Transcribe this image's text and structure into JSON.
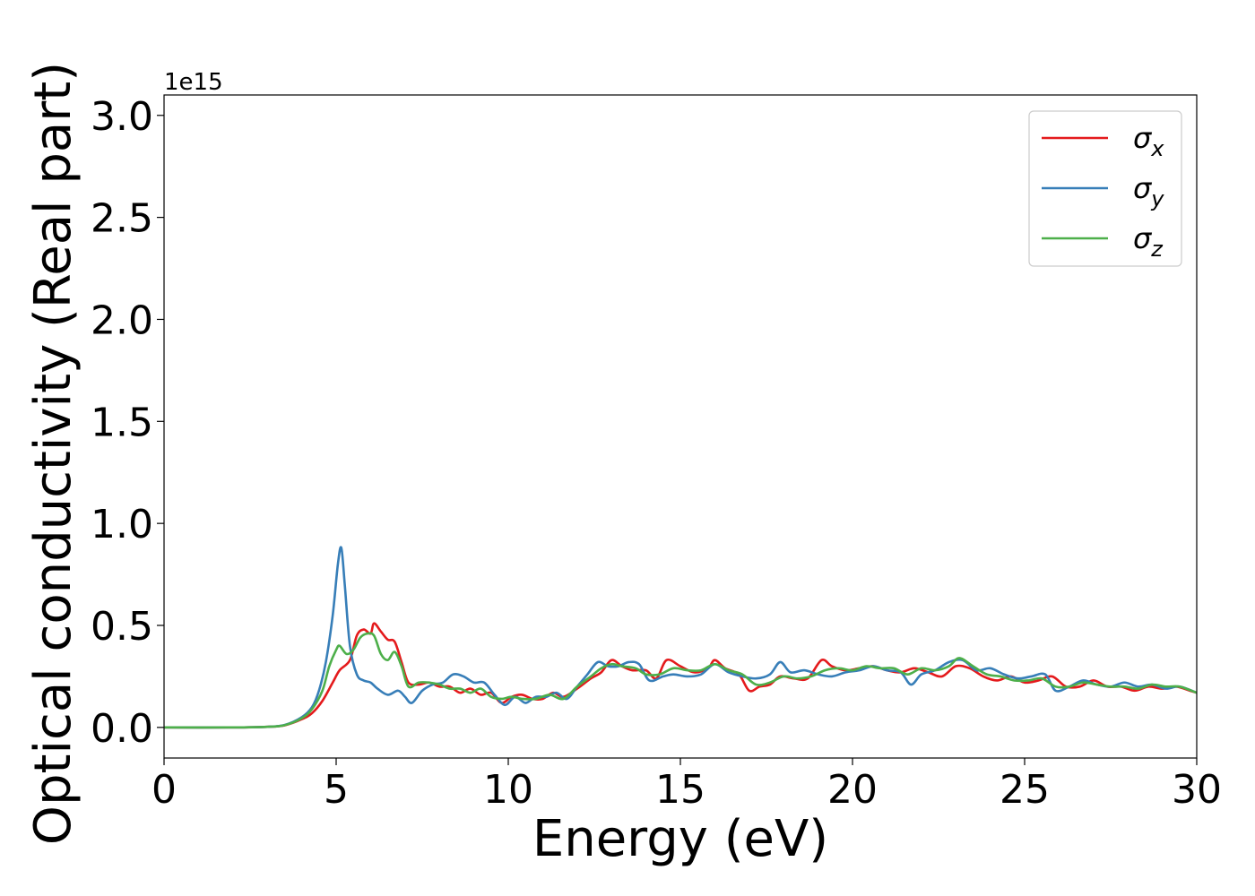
{
  "chart_data": {
    "type": "line",
    "title": "",
    "xlabel": "Energy (eV)",
    "ylabel": "Optical conductivity (Real part)",
    "y_offset_label": "1e15",
    "xlim": [
      0,
      30
    ],
    "ylim": [
      -0.15,
      3.1
    ],
    "xticks": [
      0,
      5,
      10,
      15,
      20,
      25,
      30
    ],
    "xtick_labels": [
      "0",
      "5",
      "10",
      "15",
      "20",
      "25",
      "30"
    ],
    "yticks": [
      0.0,
      0.5,
      1.0,
      1.5,
      2.0,
      2.5,
      3.0
    ],
    "ytick_labels": [
      "0.0",
      "0.5",
      "1.0",
      "1.5",
      "2.0",
      "2.5",
      "3.0"
    ],
    "grid": false,
    "legend_position": "top-right",
    "series": [
      {
        "name": "σx",
        "base": "σ",
        "sub": "x",
        "color": "#e41a1c",
        "points": [
          [
            0,
            0
          ],
          [
            2,
            0
          ],
          [
            3,
            0.003
          ],
          [
            3.5,
            0.01
          ],
          [
            4,
            0.04
          ],
          [
            4.3,
            0.07
          ],
          [
            4.6,
            0.13
          ],
          [
            4.9,
            0.22
          ],
          [
            5.1,
            0.28
          ],
          [
            5.4,
            0.33
          ],
          [
            5.6,
            0.45
          ],
          [
            5.8,
            0.48
          ],
          [
            6.0,
            0.46
          ],
          [
            6.1,
            0.51
          ],
          [
            6.3,
            0.47
          ],
          [
            6.5,
            0.43
          ],
          [
            6.7,
            0.42
          ],
          [
            6.9,
            0.32
          ],
          [
            7.1,
            0.22
          ],
          [
            7.4,
            0.21
          ],
          [
            7.7,
            0.22
          ],
          [
            8.0,
            0.2
          ],
          [
            8.3,
            0.2
          ],
          [
            8.6,
            0.17
          ],
          [
            8.9,
            0.19
          ],
          [
            9.2,
            0.16
          ],
          [
            9.5,
            0.17
          ],
          [
            9.8,
            0.12
          ],
          [
            10.1,
            0.15
          ],
          [
            10.4,
            0.16
          ],
          [
            10.7,
            0.14
          ],
          [
            11,
            0.14
          ],
          [
            11.3,
            0.17
          ],
          [
            11.6,
            0.15
          ],
          [
            12,
            0.19
          ],
          [
            12.4,
            0.24
          ],
          [
            12.7,
            0.27
          ],
          [
            13.0,
            0.33
          ],
          [
            13.3,
            0.3
          ],
          [
            13.6,
            0.28
          ],
          [
            14.0,
            0.28
          ],
          [
            14.3,
            0.24
          ],
          [
            14.6,
            0.33
          ],
          [
            15.0,
            0.3
          ],
          [
            15.4,
            0.27
          ],
          [
            15.8,
            0.29
          ],
          [
            16.0,
            0.33
          ],
          [
            16.3,
            0.29
          ],
          [
            16.7,
            0.26
          ],
          [
            17.0,
            0.18
          ],
          [
            17.3,
            0.2
          ],
          [
            17.6,
            0.21
          ],
          [
            17.9,
            0.25
          ],
          [
            18.3,
            0.24
          ],
          [
            18.7,
            0.24
          ],
          [
            19.1,
            0.33
          ],
          [
            19.4,
            0.3
          ],
          [
            19.8,
            0.28
          ],
          [
            20.2,
            0.29
          ],
          [
            20.6,
            0.3
          ],
          [
            21.0,
            0.28
          ],
          [
            21.4,
            0.27
          ],
          [
            21.8,
            0.29
          ],
          [
            22.2,
            0.27
          ],
          [
            22.6,
            0.25
          ],
          [
            23.0,
            0.3
          ],
          [
            23.4,
            0.29
          ],
          [
            23.8,
            0.25
          ],
          [
            24.2,
            0.23
          ],
          [
            24.6,
            0.25
          ],
          [
            25.0,
            0.22
          ],
          [
            25.4,
            0.23
          ],
          [
            25.8,
            0.25
          ],
          [
            26.2,
            0.2
          ],
          [
            26.6,
            0.2
          ],
          [
            27.0,
            0.23
          ],
          [
            27.4,
            0.2
          ],
          [
            27.8,
            0.2
          ],
          [
            28.2,
            0.18
          ],
          [
            28.6,
            0.2
          ],
          [
            29.0,
            0.19
          ],
          [
            29.4,
            0.2
          ],
          [
            29.8,
            0.18
          ],
          [
            30,
            0.17
          ]
        ]
      },
      {
        "name": "σy",
        "base": "σ",
        "sub": "y",
        "color": "#377eb8",
        "points": [
          [
            0,
            0
          ],
          [
            2,
            0
          ],
          [
            3,
            0.003
          ],
          [
            3.5,
            0.012
          ],
          [
            4,
            0.05
          ],
          [
            4.3,
            0.1
          ],
          [
            4.5,
            0.18
          ],
          [
            4.7,
            0.32
          ],
          [
            4.9,
            0.55
          ],
          [
            5.05,
            0.8
          ],
          [
            5.15,
            0.88
          ],
          [
            5.25,
            0.7
          ],
          [
            5.4,
            0.4
          ],
          [
            5.6,
            0.26
          ],
          [
            5.8,
            0.23
          ],
          [
            6.0,
            0.22
          ],
          [
            6.2,
            0.19
          ],
          [
            6.5,
            0.16
          ],
          [
            6.8,
            0.18
          ],
          [
            7.0,
            0.15
          ],
          [
            7.2,
            0.12
          ],
          [
            7.5,
            0.18
          ],
          [
            7.8,
            0.21
          ],
          [
            8.1,
            0.22
          ],
          [
            8.4,
            0.26
          ],
          [
            8.7,
            0.25
          ],
          [
            9.0,
            0.22
          ],
          [
            9.3,
            0.22
          ],
          [
            9.6,
            0.16
          ],
          [
            9.9,
            0.11
          ],
          [
            10.2,
            0.15
          ],
          [
            10.5,
            0.12
          ],
          [
            10.8,
            0.15
          ],
          [
            11.1,
            0.15
          ],
          [
            11.4,
            0.17
          ],
          [
            11.7,
            0.14
          ],
          [
            12.0,
            0.2
          ],
          [
            12.3,
            0.26
          ],
          [
            12.6,
            0.32
          ],
          [
            12.9,
            0.3
          ],
          [
            13.2,
            0.3
          ],
          [
            13.5,
            0.32
          ],
          [
            13.8,
            0.31
          ],
          [
            14.1,
            0.23
          ],
          [
            14.5,
            0.25
          ],
          [
            14.8,
            0.26
          ],
          [
            15.2,
            0.25
          ],
          [
            15.6,
            0.26
          ],
          [
            16.0,
            0.31
          ],
          [
            16.4,
            0.27
          ],
          [
            16.8,
            0.25
          ],
          [
            17.2,
            0.24
          ],
          [
            17.6,
            0.26
          ],
          [
            17.9,
            0.32
          ],
          [
            18.2,
            0.27
          ],
          [
            18.6,
            0.28
          ],
          [
            19.0,
            0.26
          ],
          [
            19.4,
            0.25
          ],
          [
            19.8,
            0.27
          ],
          [
            20.2,
            0.28
          ],
          [
            20.6,
            0.3
          ],
          [
            21.0,
            0.28
          ],
          [
            21.4,
            0.27
          ],
          [
            21.7,
            0.21
          ],
          [
            22.0,
            0.26
          ],
          [
            22.4,
            0.28
          ],
          [
            22.8,
            0.32
          ],
          [
            23.2,
            0.33
          ],
          [
            23.6,
            0.28
          ],
          [
            24.0,
            0.29
          ],
          [
            24.4,
            0.26
          ],
          [
            24.8,
            0.24
          ],
          [
            25.2,
            0.25
          ],
          [
            25.6,
            0.26
          ],
          [
            25.9,
            0.18
          ],
          [
            26.3,
            0.2
          ],
          [
            26.7,
            0.23
          ],
          [
            27.1,
            0.21
          ],
          [
            27.5,
            0.2
          ],
          [
            27.9,
            0.22
          ],
          [
            28.3,
            0.2
          ],
          [
            28.7,
            0.21
          ],
          [
            29.1,
            0.19
          ],
          [
            29.5,
            0.2
          ],
          [
            30,
            0.17
          ]
        ]
      },
      {
        "name": "σz",
        "base": "σ",
        "sub": "z",
        "color": "#4daf4a",
        "points": [
          [
            0,
            0
          ],
          [
            2,
            0
          ],
          [
            3,
            0.003
          ],
          [
            3.5,
            0.011
          ],
          [
            4,
            0.045
          ],
          [
            4.3,
            0.09
          ],
          [
            4.6,
            0.18
          ],
          [
            4.8,
            0.3
          ],
          [
            5.0,
            0.38
          ],
          [
            5.1,
            0.4
          ],
          [
            5.3,
            0.36
          ],
          [
            5.5,
            0.38
          ],
          [
            5.7,
            0.44
          ],
          [
            5.9,
            0.46
          ],
          [
            6.1,
            0.45
          ],
          [
            6.3,
            0.36
          ],
          [
            6.5,
            0.33
          ],
          [
            6.7,
            0.37
          ],
          [
            6.9,
            0.3
          ],
          [
            7.1,
            0.2
          ],
          [
            7.4,
            0.22
          ],
          [
            7.7,
            0.22
          ],
          [
            8.0,
            0.21
          ],
          [
            8.3,
            0.19
          ],
          [
            8.6,
            0.19
          ],
          [
            8.9,
            0.17
          ],
          [
            9.2,
            0.19
          ],
          [
            9.5,
            0.15
          ],
          [
            9.8,
            0.14
          ],
          [
            10.1,
            0.15
          ],
          [
            10.4,
            0.14
          ],
          [
            10.8,
            0.14
          ],
          [
            11.2,
            0.16
          ],
          [
            11.6,
            0.14
          ],
          [
            12.0,
            0.2
          ],
          [
            12.4,
            0.25
          ],
          [
            12.7,
            0.29
          ],
          [
            13.0,
            0.31
          ],
          [
            13.3,
            0.3
          ],
          [
            13.7,
            0.29
          ],
          [
            14.0,
            0.26
          ],
          [
            14.4,
            0.26
          ],
          [
            14.8,
            0.29
          ],
          [
            15.2,
            0.28
          ],
          [
            15.6,
            0.28
          ],
          [
            16.0,
            0.31
          ],
          [
            16.4,
            0.28
          ],
          [
            16.8,
            0.26
          ],
          [
            17.2,
            0.21
          ],
          [
            17.6,
            0.22
          ],
          [
            18.0,
            0.25
          ],
          [
            18.4,
            0.24
          ],
          [
            18.8,
            0.25
          ],
          [
            19.2,
            0.28
          ],
          [
            19.6,
            0.29
          ],
          [
            20.0,
            0.28
          ],
          [
            20.4,
            0.3
          ],
          [
            20.8,
            0.29
          ],
          [
            21.2,
            0.29
          ],
          [
            21.6,
            0.26
          ],
          [
            22.0,
            0.29
          ],
          [
            22.4,
            0.28
          ],
          [
            22.8,
            0.3
          ],
          [
            23.1,
            0.34
          ],
          [
            23.5,
            0.3
          ],
          [
            23.9,
            0.26
          ],
          [
            24.3,
            0.25
          ],
          [
            24.7,
            0.23
          ],
          [
            25.1,
            0.23
          ],
          [
            25.5,
            0.24
          ],
          [
            25.9,
            0.2
          ],
          [
            26.3,
            0.2
          ],
          [
            26.7,
            0.22
          ],
          [
            27.1,
            0.21
          ],
          [
            27.5,
            0.2
          ],
          [
            27.9,
            0.2
          ],
          [
            28.3,
            0.19
          ],
          [
            28.7,
            0.21
          ],
          [
            29.1,
            0.2
          ],
          [
            29.5,
            0.2
          ],
          [
            30,
            0.17
          ]
        ]
      }
    ]
  }
}
